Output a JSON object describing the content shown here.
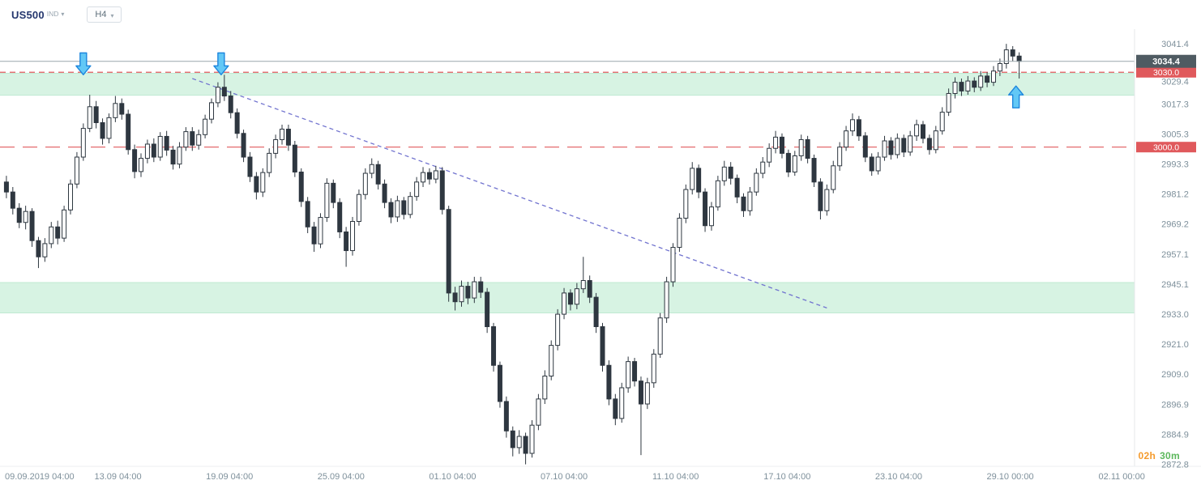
{
  "header": {
    "symbol": "US500",
    "market_type": "IND",
    "timeframe": "H4"
  },
  "countdown": {
    "hours": "02h",
    "minutes": "30m"
  },
  "colors": {
    "countdown_hours": "#f59b2d",
    "countdown_minutes": "#5cb85c",
    "symbol_text": "#25376e"
  },
  "chart_data": {
    "type": "candlestick",
    "symbol": "US500",
    "timeframe": "H4",
    "ylim": [
      2872,
      3046
    ],
    "grid": false,
    "y_ticks": [
      "3041.4",
      "3029.4",
      "3017.3",
      "3005.3",
      "2993.3",
      "2981.2",
      "2969.2",
      "2957.1",
      "2945.1",
      "2933.0",
      "2921.0",
      "2909.0",
      "2896.9",
      "2884.9",
      "2872.8"
    ],
    "x_labels": [
      {
        "label": "09.09.2019 04:00",
        "index": 0
      },
      {
        "label": "13.09 04:00",
        "index": 17.4
      },
      {
        "label": "19.09 04:00",
        "index": 34.8
      },
      {
        "label": "25.09 04:00",
        "index": 52.2
      },
      {
        "label": "01.10 04:00",
        "index": 69.6
      },
      {
        "label": "07.10 04:00",
        "index": 87
      },
      {
        "label": "11.10 04:00",
        "index": 104.4
      },
      {
        "label": "17.10 04:00",
        "index": 121.8
      },
      {
        "label": "23.10 04:00",
        "index": 139.2
      },
      {
        "label": "29.10 00:00",
        "index": 156.6
      },
      {
        "label": "02.11 00:00",
        "index": 174
      }
    ],
    "current_price": {
      "value": 3034.4,
      "label": "3034.4"
    },
    "levels": [
      {
        "label": "3030.0",
        "value": 3030.0,
        "dash": "7,5"
      },
      {
        "label": "3000.0",
        "value": 3000.0,
        "dash": "18,10"
      }
    ],
    "zones": [
      {
        "from": 3020.8,
        "to": 3029.6
      },
      {
        "from": 2933.5,
        "to": 2945.7
      }
    ],
    "trendline": {
      "from_index": 29,
      "from_price": 3027.5,
      "to_index": 128,
      "to_price": 2935.5
    },
    "arrows": [
      {
        "direction": "down",
        "index": 12,
        "price": 3029.0
      },
      {
        "direction": "down",
        "index": 33.5,
        "price": 3029.0
      },
      {
        "direction": "up",
        "index": 157.5,
        "price": 3024.5
      }
    ],
    "style": {
      "bull": "#ffffff",
      "bear": "#2e3740",
      "outline": "#2e3740",
      "zone_fill": "#d7f3e3",
      "zone_edge": "#bfe9d2",
      "level_color": "#e0595c",
      "level_badge_bg": "#e0595c",
      "price_line": "#9aa7ad",
      "price_badge_bg": "#4f5b62",
      "trend_color": "#7173cf",
      "arrow_fill": "#62c8f6",
      "arrow_stroke": "#1d86dd",
      "axis_text": "#7e909b",
      "axis_border": "#e4e7ea"
    },
    "candles": [
      [
        2986.0,
        2988.5,
        2979.5,
        2982.0
      ],
      [
        2982.0,
        2984.0,
        2973.0,
        2975.5
      ],
      [
        2975.5,
        2977.5,
        2967.5,
        2969.8
      ],
      [
        2969.8,
        2976.5,
        2967.0,
        2974.2
      ],
      [
        2974.2,
        2975.5,
        2960.0,
        2962.5
      ],
      [
        2962.5,
        2964.0,
        2951.5,
        2956.0
      ],
      [
        2956.0,
        2963.5,
        2954.0,
        2961.3
      ],
      [
        2961.3,
        2970.0,
        2959.5,
        2968.0
      ],
      [
        2968.0,
        2970.5,
        2961.0,
        2963.5
      ],
      [
        2963.5,
        2976.5,
        2962.0,
        2974.8
      ],
      [
        2974.8,
        2987.0,
        2973.0,
        2985.2
      ],
      [
        2985.2,
        2998.0,
        2983.5,
        2996.0
      ],
      [
        2996.0,
        3009.5,
        2994.5,
        3007.5
      ],
      [
        3007.5,
        3021.0,
        3006.0,
        3016.2
      ],
      [
        3016.2,
        3018.5,
        3007.5,
        3009.8
      ],
      [
        3009.8,
        3011.5,
        3001.0,
        3003.5
      ],
      [
        3003.5,
        3013.5,
        3001.5,
        3011.8
      ],
      [
        3011.8,
        3020.5,
        3010.0,
        3017.5
      ],
      [
        3017.5,
        3019.5,
        3011.0,
        3013.2
      ],
      [
        3013.2,
        3015.0,
        2997.0,
        2999.0
      ],
      [
        2999.0,
        3001.0,
        2987.5,
        2990.2
      ],
      [
        2990.2,
        2997.5,
        2988.0,
        2995.5
      ],
      [
        2995.5,
        3003.0,
        2993.5,
        3001.2
      ],
      [
        3001.2,
        3003.5,
        2994.0,
        2996.0
      ],
      [
        2996.0,
        3006.0,
        2994.5,
        3004.3
      ],
      [
        3004.3,
        3006.5,
        2996.5,
        2998.8
      ],
      [
        2998.8,
        3000.5,
        2991.0,
        2993.2
      ],
      [
        2993.2,
        3002.0,
        2991.5,
        3000.0
      ],
      [
        3000.0,
        3008.0,
        2998.5,
        3006.2
      ],
      [
        3006.2,
        3008.0,
        2998.5,
        3000.8
      ],
      [
        3000.8,
        3007.0,
        2999.0,
        3005.0
      ],
      [
        3005.0,
        3013.0,
        3003.5,
        3011.2
      ],
      [
        3011.2,
        3019.5,
        3009.5,
        3017.8
      ],
      [
        3017.8,
        3026.0,
        3016.0,
        3024.0
      ],
      [
        3024.0,
        3029.0,
        3018.5,
        3020.5
      ],
      [
        3020.5,
        3022.5,
        3011.5,
        3013.8
      ],
      [
        3013.8,
        3015.5,
        3003.5,
        3005.5
      ],
      [
        3005.5,
        3007.0,
        2994.0,
        2996.0
      ],
      [
        2996.0,
        2998.0,
        2986.0,
        2988.2
      ],
      [
        2988.2,
        2990.0,
        2979.0,
        2982.0
      ],
      [
        2982.0,
        2991.5,
        2980.0,
        2989.8
      ],
      [
        2989.8,
        2999.5,
        2988.0,
        2997.5
      ],
      [
        2997.5,
        3005.0,
        2995.5,
        3003.0
      ],
      [
        3003.0,
        3009.0,
        3001.0,
        3007.2
      ],
      [
        3007.2,
        3009.0,
        2998.5,
        3000.8
      ],
      [
        3000.8,
        3002.5,
        2988.0,
        2990.0
      ],
      [
        2990.0,
        2991.5,
        2976.0,
        2978.2
      ],
      [
        2978.2,
        2980.0,
        2965.5,
        2968.0
      ],
      [
        2968.0,
        2970.0,
        2958.0,
        2961.2
      ],
      [
        2961.2,
        2973.5,
        2959.5,
        2971.8
      ],
      [
        2971.8,
        2987.5,
        2970.0,
        2985.5
      ],
      [
        2985.5,
        2987.0,
        2975.5,
        2977.8
      ],
      [
        2977.8,
        2979.5,
        2963.5,
        2966.0
      ],
      [
        2966.0,
        2968.0,
        2952.0,
        2958.5
      ],
      [
        2958.5,
        2972.0,
        2956.5,
        2970.2
      ],
      [
        2970.2,
        2983.0,
        2968.5,
        2981.0
      ],
      [
        2981.0,
        2991.5,
        2979.0,
        2989.5
      ],
      [
        2989.5,
        2995.5,
        2987.5,
        2993.0
      ],
      [
        2993.0,
        2994.5,
        2983.0,
        2985.2
      ],
      [
        2985.2,
        2987.0,
        2975.5,
        2977.8
      ],
      [
        2977.8,
        2979.5,
        2969.5,
        2972.0
      ],
      [
        2972.0,
        2980.5,
        2970.0,
        2978.5
      ],
      [
        2978.5,
        2980.0,
        2971.0,
        2973.0
      ],
      [
        2973.0,
        2982.0,
        2971.5,
        2980.2
      ],
      [
        2980.2,
        2988.0,
        2978.5,
        2986.0
      ],
      [
        2986.0,
        2992.0,
        2984.0,
        2989.8
      ],
      [
        2989.8,
        2991.5,
        2985.0,
        2987.2
      ],
      [
        2987.2,
        2992.5,
        2985.5,
        2990.5
      ],
      [
        2990.5,
        2992.0,
        2973.0,
        2975.0
      ],
      [
        2975.0,
        2976.5,
        2938.0,
        2941.5
      ],
      [
        2941.5,
        2944.0,
        2934.5,
        2938.0
      ],
      [
        2938.0,
        2946.5,
        2936.0,
        2944.2
      ],
      [
        2944.2,
        2946.0,
        2937.0,
        2939.5
      ],
      [
        2939.5,
        2948.0,
        2937.5,
        2946.0
      ],
      [
        2946.0,
        2948.0,
        2939.5,
        2941.8
      ],
      [
        2941.8,
        2943.5,
        2925.5,
        2928.0
      ],
      [
        2928.0,
        2929.5,
        2910.0,
        2912.5
      ],
      [
        2912.5,
        2914.0,
        2895.5,
        2898.0
      ],
      [
        2898.0,
        2900.0,
        2883.5,
        2886.2
      ],
      [
        2886.2,
        2888.0,
        2876.0,
        2879.5
      ],
      [
        2879.5,
        2886.5,
        2877.0,
        2884.0
      ],
      [
        2884.0,
        2885.5,
        2872.8,
        2877.2
      ],
      [
        2877.2,
        2890.5,
        2875.5,
        2888.5
      ],
      [
        2888.5,
        2901.0,
        2886.5,
        2899.0
      ],
      [
        2899.0,
        2910.5,
        2897.0,
        2908.2
      ],
      [
        2908.2,
        2922.5,
        2906.5,
        2920.5
      ],
      [
        2920.5,
        2935.0,
        2918.5,
        2933.0
      ],
      [
        2933.0,
        2943.5,
        2931.0,
        2941.5
      ],
      [
        2941.5,
        2943.0,
        2934.5,
        2937.0
      ],
      [
        2937.0,
        2945.5,
        2935.0,
        2943.2
      ],
      [
        2943.2,
        2956.0,
        2941.5,
        2946.5
      ],
      [
        2946.5,
        2948.5,
        2937.5,
        2939.8
      ],
      [
        2939.8,
        2941.5,
        2925.5,
        2928.0
      ],
      [
        2928.0,
        2929.5,
        2910.0,
        2912.5
      ],
      [
        2912.5,
        2914.5,
        2896.5,
        2899.0
      ],
      [
        2899.0,
        2901.0,
        2888.5,
        2891.2
      ],
      [
        2891.2,
        2905.5,
        2889.5,
        2903.5
      ],
      [
        2903.5,
        2916.0,
        2901.5,
        2914.0
      ],
      [
        2914.0,
        2915.5,
        2904.0,
        2906.2
      ],
      [
        2906.2,
        2908.0,
        2876.5,
        2897.0
      ],
      [
        2897.0,
        2907.5,
        2895.0,
        2905.5
      ],
      [
        2905.5,
        2919.0,
        2903.5,
        2917.0
      ],
      [
        2917.0,
        2933.5,
        2915.5,
        2931.5
      ],
      [
        2931.5,
        2948.0,
        2929.5,
        2946.0
      ],
      [
        2946.0,
        2961.5,
        2944.0,
        2959.8
      ],
      [
        2959.8,
        2973.5,
        2958.0,
        2971.5
      ],
      [
        2971.5,
        2985.0,
        2969.5,
        2983.0
      ],
      [
        2983.0,
        2994.0,
        2981.0,
        2991.5
      ],
      [
        2991.5,
        2993.0,
        2979.5,
        2982.0
      ],
      [
        2982.0,
        2983.5,
        2966.0,
        2968.5
      ],
      [
        2968.5,
        2978.0,
        2966.5,
        2976.0
      ],
      [
        2976.0,
        2988.5,
        2974.5,
        2986.5
      ],
      [
        2986.5,
        2994.5,
        2984.5,
        2992.0
      ],
      [
        2992.0,
        2994.0,
        2985.0,
        2987.5
      ],
      [
        2987.5,
        2989.0,
        2977.5,
        2980.0
      ],
      [
        2980.0,
        2981.5,
        2972.0,
        2974.5
      ],
      [
        2974.5,
        2984.0,
        2972.5,
        2982.0
      ],
      [
        2982.0,
        2991.5,
        2980.5,
        2989.5
      ],
      [
        2989.5,
        2996.0,
        2987.5,
        2994.0
      ],
      [
        2994.0,
        3001.5,
        2992.0,
        2999.5
      ],
      [
        2999.5,
        3006.5,
        2997.5,
        3004.0
      ],
      [
        3004.0,
        3005.5,
        2995.5,
        2997.5
      ],
      [
        2997.5,
        2999.0,
        2988.0,
        2990.0
      ],
      [
        2990.0,
        2998.5,
        2988.5,
        2996.5
      ],
      [
        2996.5,
        3005.0,
        2994.5,
        3003.0
      ],
      [
        3003.0,
        3004.5,
        2993.5,
        2995.5
      ],
      [
        2995.5,
        2997.0,
        2984.0,
        2986.0
      ],
      [
        2986.0,
        2987.5,
        2971.0,
        2974.5
      ],
      [
        2974.5,
        2985.0,
        2972.5,
        2983.0
      ],
      [
        2983.0,
        2994.5,
        2981.5,
        2992.5
      ],
      [
        2992.5,
        3002.0,
        2990.5,
        3000.0
      ],
      [
        3000.0,
        3008.5,
        2998.5,
        3006.5
      ],
      [
        3006.5,
        3013.5,
        3004.5,
        3011.0
      ],
      [
        3011.0,
        3012.5,
        3002.5,
        3004.5
      ],
      [
        3004.5,
        3006.0,
        2994.0,
        2996.0
      ],
      [
        2996.0,
        2997.5,
        2988.5,
        2990.5
      ],
      [
        2990.5,
        2998.0,
        2989.0,
        2996.0
      ],
      [
        2996.0,
        3004.5,
        2994.5,
        3002.5
      ],
      [
        3002.5,
        3004.0,
        2995.0,
        2997.0
      ],
      [
        2997.0,
        3005.5,
        2995.5,
        3003.5
      ],
      [
        3003.5,
        3005.0,
        2996.0,
        2998.0
      ],
      [
        2998.0,
        3006.5,
        2996.5,
        3004.5
      ],
      [
        3004.5,
        3011.0,
        3002.5,
        3009.0
      ],
      [
        3009.0,
        3010.5,
        3001.5,
        3003.5
      ],
      [
        3003.5,
        3005.0,
        2997.0,
        2999.0
      ],
      [
        2999.0,
        3008.5,
        2997.5,
        3006.5
      ],
      [
        3006.5,
        3016.0,
        3005.0,
        3014.0
      ],
      [
        3014.0,
        3023.5,
        3012.5,
        3021.5
      ],
      [
        3021.5,
        3028.0,
        3019.5,
        3026.0
      ],
      [
        3026.0,
        3027.5,
        3020.5,
        3022.5
      ],
      [
        3022.5,
        3028.5,
        3021.0,
        3026.5
      ],
      [
        3026.5,
        3028.0,
        3022.0,
        3024.0
      ],
      [
        3024.0,
        3030.5,
        3022.5,
        3028.5
      ],
      [
        3028.5,
        3030.0,
        3024.0,
        3026.0
      ],
      [
        3026.0,
        3032.5,
        3024.5,
        3030.5
      ],
      [
        3030.5,
        3035.5,
        3028.5,
        3033.5
      ],
      [
        3033.5,
        3041.4,
        3031.5,
        3039.0
      ],
      [
        3039.0,
        3040.5,
        3034.5,
        3036.5
      ],
      [
        3036.5,
        3038.0,
        3027.5,
        3034.4
      ]
    ]
  }
}
